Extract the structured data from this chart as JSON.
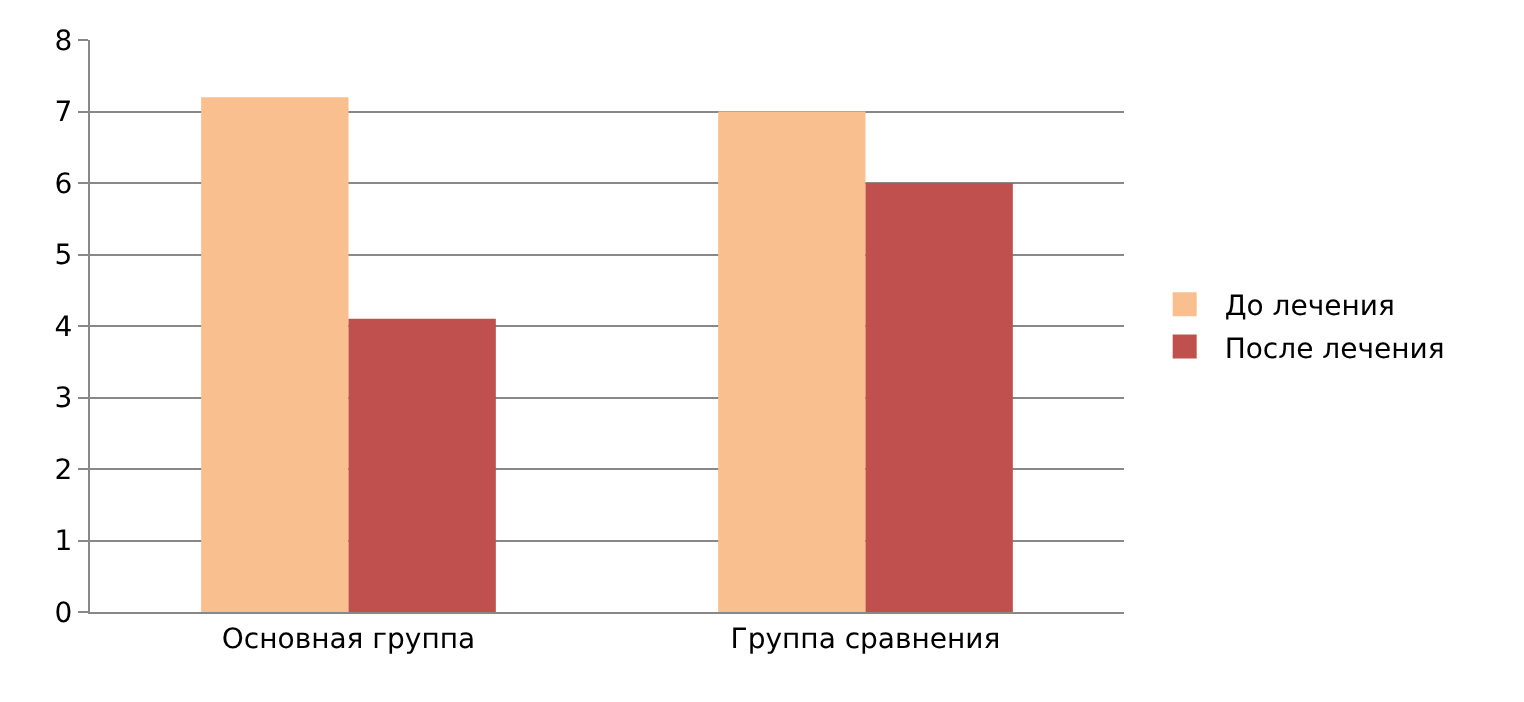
{
  "chart_data": {
    "type": "bar",
    "categories": [
      "Основная группа",
      "Группа сравнения"
    ],
    "series": [
      {
        "name": "До лечения",
        "color": "#f9bf8f",
        "values": [
          7.2,
          7.0
        ]
      },
      {
        "name": "После лечения",
        "color": "#c0504d",
        "values": [
          4.1,
          6.0
        ]
      }
    ],
    "ylim": [
      0,
      8
    ],
    "yticks": [
      0,
      1,
      2,
      3,
      4,
      5,
      6,
      7,
      8
    ],
    "grid": "y",
    "legend": "right"
  }
}
